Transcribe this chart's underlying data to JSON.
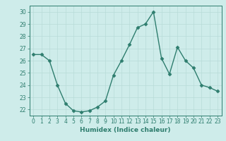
{
  "x": [
    0,
    1,
    2,
    3,
    4,
    5,
    6,
    7,
    8,
    9,
    10,
    11,
    12,
    13,
    14,
    15,
    16,
    17,
    18,
    19,
    20,
    21,
    22,
    23
  ],
  "y": [
    26.5,
    26.5,
    26.0,
    24.0,
    22.5,
    21.9,
    21.8,
    21.9,
    22.2,
    22.7,
    24.8,
    26.0,
    27.3,
    28.7,
    29.0,
    30.0,
    26.2,
    24.9,
    27.1,
    26.0,
    25.4,
    24.0,
    23.8,
    23.5
  ],
  "line_color": "#2e7d6e",
  "marker": "D",
  "markersize": 2.5,
  "linewidth": 1.0,
  "xlabel": "Humidex (Indice chaleur)",
  "xlim": [
    -0.5,
    23.5
  ],
  "ylim": [
    21.5,
    30.5
  ],
  "yticks": [
    22,
    23,
    24,
    25,
    26,
    27,
    28,
    29,
    30
  ],
  "xticks": [
    0,
    1,
    2,
    3,
    4,
    5,
    6,
    7,
    8,
    9,
    10,
    11,
    12,
    13,
    14,
    15,
    16,
    17,
    18,
    19,
    20,
    21,
    22,
    23
  ],
  "bg_color": "#ceecea",
  "grid_color": "#b8dbd8",
  "line_border_color": "#2e7d6e",
  "tick_color": "#2e7d6e",
  "label_color": "#2e7d6e",
  "xlabel_fontsize": 6.5,
  "tick_fontsize": 5.5
}
